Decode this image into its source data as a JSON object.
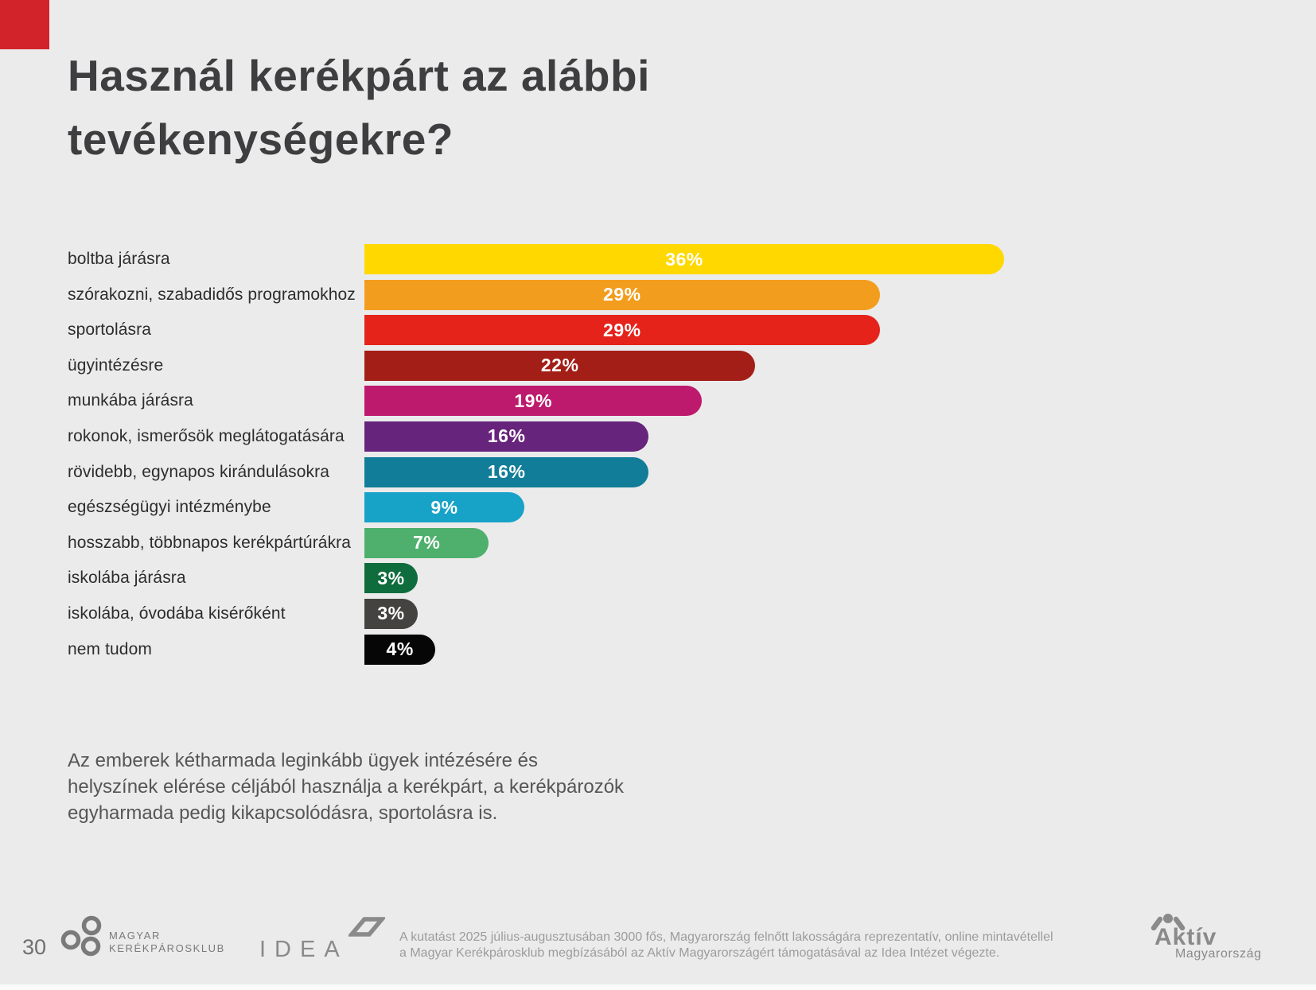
{
  "slide": {
    "title_line1": "Használ kerékpárt az alábbi",
    "title_line2": "tevékenységekre?",
    "background_color": "#ebebeb",
    "accent_square_color": "#d2232a",
    "page_number": "30"
  },
  "chart_data": {
    "type": "bar",
    "orientation": "horizontal",
    "unit": "%",
    "xlim": [
      0,
      36
    ],
    "categories": [
      "boltba járásra",
      "szórakozni, szabadidős programokhoz",
      "sportolásra",
      "ügyintézésre",
      "munkába járásra",
      "rokonok, ismerősök meglátogatására",
      "rövidebb, egynapos kirándulásokra",
      "egészségügyi intézménybe",
      "hosszabb, többnapos kerékpártúrákra",
      "iskolába járásra",
      "iskolába, óvodába kisérőként",
      "nem tudom"
    ],
    "values": [
      36,
      29,
      29,
      22,
      19,
      16,
      16,
      9,
      7,
      3,
      3,
      4
    ],
    "value_labels": [
      "36%",
      "29%",
      "29%",
      "22%",
      "19%",
      "16%",
      "16%",
      "9%",
      "7%",
      "3%",
      "3%",
      "4%"
    ],
    "bar_colors": [
      "#ffd800",
      "#f39d1e",
      "#e5231b",
      "#a41e18",
      "#bd1a6d",
      "#67247c",
      "#117d99",
      "#17a2c8",
      "#4eb06c",
      "#0f6c3d",
      "#44433f",
      "#060606"
    ],
    "value_label_color": "#ffffff",
    "grid": false,
    "legend": false
  },
  "summary": {
    "lines": [
      "Az emberek kétharmada leginkább ügyek intézésére és",
      "helyszínek elérése céljából használja a kerékpárt, a kerékpározók",
      "egyharmada pedig kikapcsolódásra, sportolásra is."
    ]
  },
  "footer": {
    "club_logo": {
      "line1": "MAGYAR",
      "line2": "KERÉKPÁROSKLUB"
    },
    "idea_logo_text": "IDEA",
    "disclaimer_line1": "A kutatást 2025 július-augusztusában 3000 fős, Magyarország felnőtt lakosságára reprezentatív, online mintavétellel",
    "disclaimer_line2": "a Magyar Kerékpárosklub megbízásából az Aktív Magyarországért támogatásával az Idea Intézet végezte.",
    "aktiv_logo": {
      "line1": "Aktív",
      "line2": "Magyarország"
    }
  }
}
